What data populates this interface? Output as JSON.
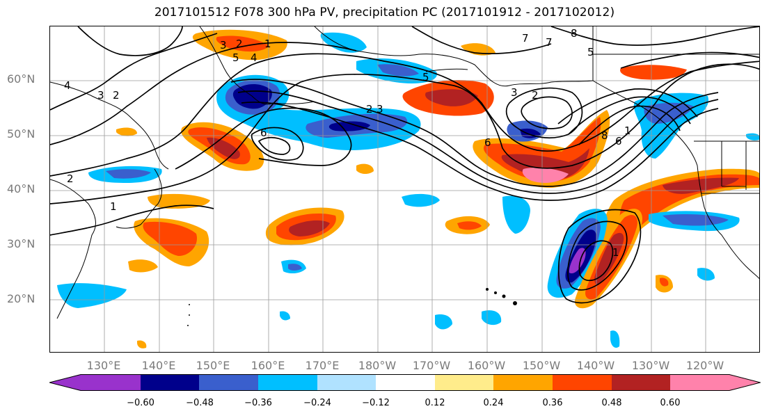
{
  "title": "2017101512 F078 300 hPa PV, precipitation PC (2017101912 - 2017102012)",
  "lat_labels": [
    "60°N",
    "50°N",
    "40°N",
    "30°N",
    "20°N"
  ],
  "lon_labels": [
    "130°E",
    "140°E",
    "150°E",
    "160°E",
    "170°E",
    "180°W",
    "170°W",
    "160°W",
    "150°W",
    "140°W",
    "130°W",
    "120°W"
  ],
  "contour_labels": [
    "3",
    "2",
    "1",
    "4",
    "5",
    "6",
    "7",
    "8",
    "5",
    "4",
    "3",
    "2",
    "2",
    "1",
    "3",
    "2",
    "5",
    "3",
    "2",
    "6",
    "8",
    "6",
    "7",
    "1",
    "1"
  ],
  "colorbar": {
    "ticks": [
      "−0.60",
      "−0.48",
      "−0.36",
      "−0.24",
      "−0.12",
      "0.12",
      "0.24",
      "0.36",
      "0.48",
      "0.60"
    ],
    "colors": [
      "#9932CC",
      "#00008B",
      "#3A5FCD",
      "#00BFFF",
      "#B0E2FF",
      "#FFFFFF",
      "#FFEC8B",
      "#FFA500",
      "#FF4500",
      "#B22222",
      "#FF82AB"
    ]
  }
}
